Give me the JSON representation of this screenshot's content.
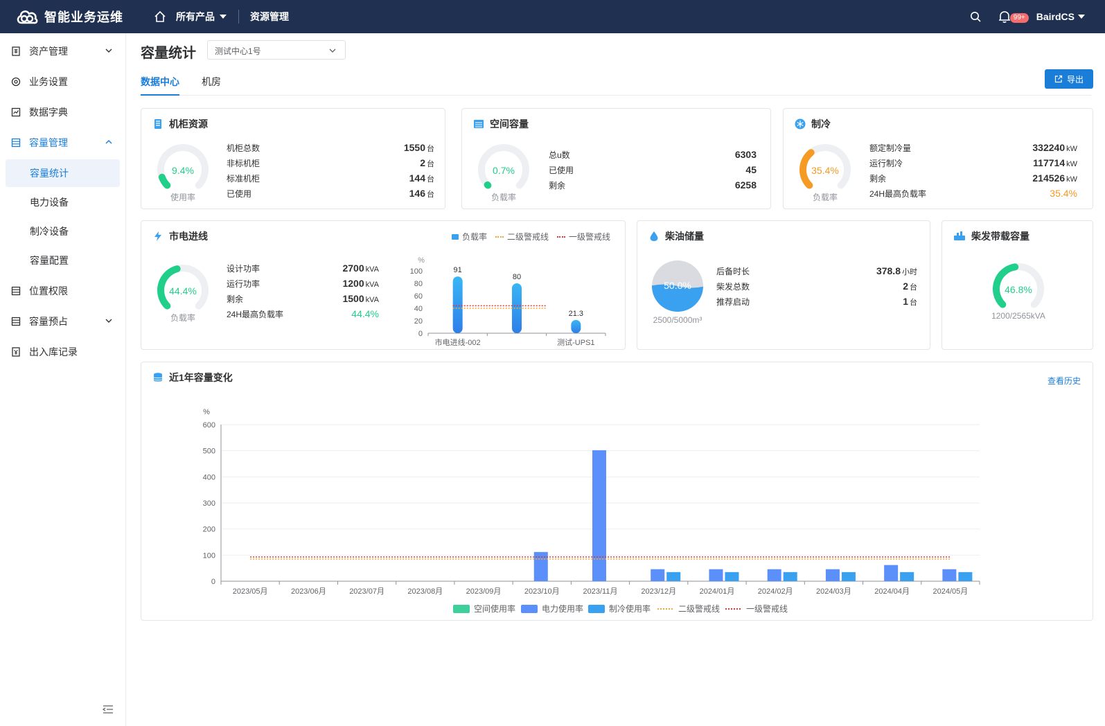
{
  "app": {
    "title": "智能业务运维"
  },
  "topnav": {
    "home_label": "",
    "products": "所有产品",
    "resource": "资源管理",
    "notifications_badge": "99+",
    "user": "BairdCS"
  },
  "sidebar": {
    "items": [
      {
        "label": "资产管理"
      },
      {
        "label": "业务设置"
      },
      {
        "label": "数据字典"
      },
      {
        "label": "容量管理"
      },
      {
        "label": "位置权限"
      },
      {
        "label": "容量预占"
      },
      {
        "label": "出入库记录"
      }
    ],
    "submenu": [
      {
        "label": "容量统计"
      },
      {
        "label": "电力设备"
      },
      {
        "label": "制冷设备"
      },
      {
        "label": "容量配置"
      }
    ]
  },
  "page": {
    "title": "容量统计",
    "select_value": "测试中心1号",
    "tabs": [
      "数据中心",
      "机房"
    ],
    "export_label": "导出"
  },
  "cabinet": {
    "title": "机柜资源",
    "gauge_value": "9.4%",
    "gauge_fraction": 0.094,
    "gauge_label": "使用率",
    "rows": [
      {
        "k": "机柜总数",
        "v": "1550",
        "u": "台"
      },
      {
        "k": "非标机柜",
        "v": "2",
        "u": "台"
      },
      {
        "k": "标准机柜",
        "v": "144",
        "u": "台"
      },
      {
        "k": "已使用",
        "v": "146",
        "u": "台"
      }
    ]
  },
  "space": {
    "title": "空间容量",
    "gauge_value": "0.7%",
    "gauge_fraction": 0.007,
    "gauge_label": "负载率",
    "rows": [
      {
        "k": "总u数",
        "v": "6303"
      },
      {
        "k": "已使用",
        "v": "45"
      },
      {
        "k": "剩余",
        "v": "6258"
      }
    ]
  },
  "cooling": {
    "title": "制冷",
    "gauge_value": "35.4%",
    "gauge_fraction": 0.354,
    "gauge_label": "负载率",
    "rows": [
      {
        "k": "额定制冷量",
        "v": "332240",
        "u": "kW"
      },
      {
        "k": "运行制冷",
        "v": "117714",
        "u": "kW"
      },
      {
        "k": "剩余",
        "v": "214526",
        "u": "kW"
      },
      {
        "k": "24H最高负载率",
        "v": "35.4%"
      }
    ]
  },
  "power": {
    "title": "市电进线",
    "gauge_value": "44.4%",
    "gauge_fraction": 0.444,
    "gauge_label": "负载率",
    "rows": [
      {
        "k": "设计功率",
        "v": "2700",
        "u": "kVA"
      },
      {
        "k": "运行功率",
        "v": "1200",
        "u": "kVA"
      },
      {
        "k": "剩余",
        "v": "1500",
        "u": "kVA"
      },
      {
        "k": "24H最高负载率",
        "v": "44.4%"
      }
    ],
    "legend": [
      "负载率",
      "二级警戒线",
      "一级警戒线"
    ]
  },
  "diesel": {
    "title": "柴油储量",
    "fill_value": "50.0%",
    "fill_fraction": 0.5,
    "sub_label": "2500/5000m³",
    "rows": [
      {
        "k": "后备时长",
        "v": "378.8",
        "u": "小时"
      },
      {
        "k": "柴发总数",
        "v": "2",
        "u": "台"
      },
      {
        "k": "推荐启动",
        "v": "1",
        "u": "台"
      }
    ]
  },
  "genset": {
    "title": "柴发带载容量",
    "gauge_value": "46.8%",
    "gauge_fraction": 0.468,
    "sub_label": "1200/2565kVA"
  },
  "history": {
    "title": "近1年容量变化",
    "link": "查看历史"
  },
  "chart_data": [
    {
      "type": "bar",
      "ylabel": "%",
      "ylim": [
        0,
        100
      ],
      "yticks": [
        0,
        20,
        40,
        60,
        80,
        100
      ],
      "categories": [
        "市电进线-002",
        "",
        "测试-UPS1"
      ],
      "series": [
        {
          "name": "负载率",
          "values": [
            91,
            80,
            21.3
          ]
        }
      ],
      "warning_level_2": 40,
      "warning_level_1": 44,
      "legend": "top-right"
    },
    {
      "type": "bar",
      "ylabel": "%",
      "ylim": [
        0,
        600
      ],
      "yticks": [
        0,
        100,
        200,
        300,
        400,
        500,
        600
      ],
      "categories": [
        "2023/05月",
        "2023/06月",
        "2023/07月",
        "2023/08月",
        "2023/09月",
        "2023/10月",
        "2023/11月",
        "2023/12月",
        "2024/01月",
        "2024/02月",
        "2024/03月",
        "2024/04月",
        "2024/05月"
      ],
      "series": [
        {
          "name": "空间使用率",
          "values": [
            0,
            0,
            0,
            0,
            0,
            0,
            0,
            0,
            0,
            0,
            0,
            0,
            0
          ]
        },
        {
          "name": "电力使用率",
          "values": [
            0,
            0,
            0,
            0,
            0,
            112,
            502,
            46,
            46,
            46,
            46,
            62,
            46
          ]
        },
        {
          "name": "制冷使用率",
          "values": [
            0,
            0,
            0,
            0,
            0,
            0,
            0,
            35,
            35,
            35,
            35,
            35,
            35
          ]
        },
        {
          "name": "二级警戒线",
          "values": [
            85,
            85,
            85,
            85,
            85,
            85,
            85,
            85,
            85,
            85,
            85,
            85,
            85
          ]
        },
        {
          "name": "一级警戒线",
          "values": [
            93,
            93,
            93,
            93,
            93,
            93,
            93,
            93,
            93,
            93,
            93,
            93,
            93
          ]
        }
      ],
      "legend": "bottom"
    }
  ],
  "colors": {
    "primary": "#1a7dd8",
    "green": "#1fcf8a",
    "orange": "#f59a23",
    "blue_bar": "#5b8ff9",
    "cyan_bar": "#3aa0f0",
    "warn2": "#f0a73a",
    "warn1": "#e0333a"
  }
}
